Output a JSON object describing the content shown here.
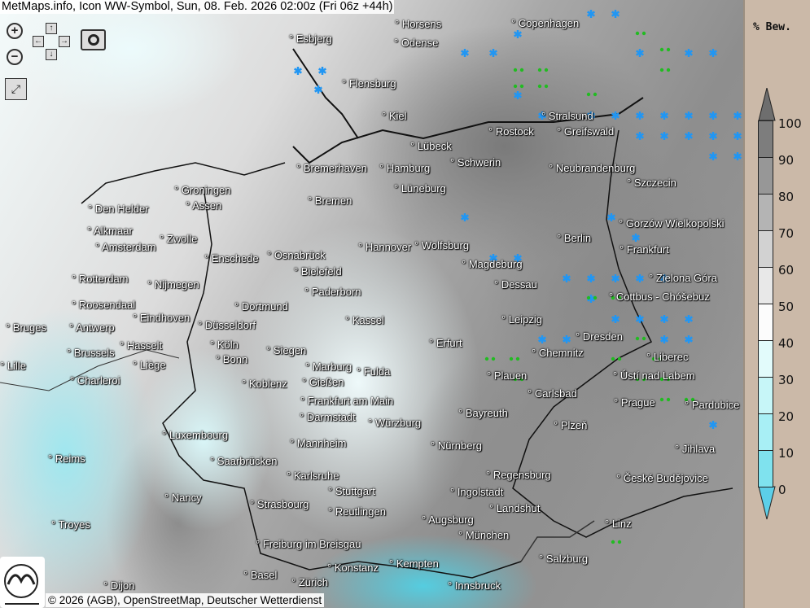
{
  "title": "MetMaps.info, Icon WW-Symbol, Sun, 08. Feb. 2026 02:00z (Fri 06z +44h)",
  "controls": {
    "zoom_in": "zoom-in-icon",
    "zoom_out": "zoom-out-icon",
    "pan": "pan-arrows-icon",
    "screenshot": "camera-icon",
    "fullscreen": "fullscreen-icon",
    "arrows": [
      "↑",
      "←",
      "→",
      "↓"
    ]
  },
  "legend": {
    "title": "% Bew.",
    "ticks": [
      "100",
      "90",
      "80",
      "70",
      "60",
      "50",
      "40",
      "30",
      "20",
      "10",
      "0"
    ],
    "colors": [
      "#6e6e6e",
      "#7d7d7d",
      "#979797",
      "#b4b4b4",
      "#d2d2d2",
      "#e8e8e8",
      "#fcfcfc",
      "#e2fbfb",
      "#c7f6f8",
      "#a8eff5",
      "#7fe2ee",
      "#5ccfe8"
    ]
  },
  "symbol_colors": {
    "fog": "#e6dc4a",
    "snow": "#2196f3",
    "drizzle": "#22bb22"
  },
  "cities": [
    "Horsens",
    "Esbjerg",
    "Odense",
    "Copenhagen",
    "Flensburg",
    "Kiel",
    "Stralsund",
    "Rostock",
    "Greifswald",
    "Lübeck",
    "Schwerin",
    "Neubrandenburg",
    "Szczecin",
    "Bremerhaven",
    "Hamburg",
    "Groningen",
    "Assen",
    "Bremen",
    "Lüneburg",
    "Den Helder",
    "Alkmaar",
    "Zwolle",
    "Amsterdam",
    "Berlin",
    "Gorzów Wielkopolski",
    "Frankfurt",
    "Hannover",
    "Wolfsburg",
    "Osnabrück",
    "Enschede",
    "Bielefeld",
    "Magdeburg",
    "Zielona Góra",
    "Rotterdam",
    "Nijmegen",
    "Dessau",
    "Paderborn",
    "Cottbus - Chóšebuz",
    "Roosendaal",
    "Eindhoven",
    "Dortmund",
    "Leipzig",
    "Kassel",
    "Bruges",
    "Antwerp",
    "Düsseldorf",
    "Dresden",
    "Hasselt",
    "Köln",
    "Siegen",
    "Marburg",
    "Erfurt",
    "Brussels",
    "Liège",
    "Bonn",
    "Chemnitz",
    "Liberec",
    "Lille",
    "Gießen",
    "Fulda",
    "Ústí nad Labem",
    "Plauen",
    "Charleroi",
    "Koblenz",
    "Carlsbad",
    "Frankfurt am Main",
    "Prague",
    "Pardubice",
    "Darmstadt",
    "Würzburg",
    "Bayreuth",
    "Plzeň",
    "Luxembourg",
    "Mannheim",
    "Nürnberg",
    "Jihlava",
    "Reims",
    "Saarbrücken",
    "Karlsruhe",
    "Regensburg",
    "České Budějovice",
    "Stuttgart",
    "Ingolstadt",
    "Nancy",
    "Strasbourg",
    "Reutlingen",
    "Landshut",
    "Augsburg",
    "Troyes",
    "Linz",
    "München",
    "Freiburg im Breisgau",
    "Salzburg",
    "Konstanz",
    "Kempten",
    "Basel",
    "Zürich",
    "Dijon",
    "Innsbruck"
  ],
  "logo_text": "METMAPS",
  "copyright": "© 2026 (AGB), OpenStreetMap, Deutscher Wetterdienst"
}
